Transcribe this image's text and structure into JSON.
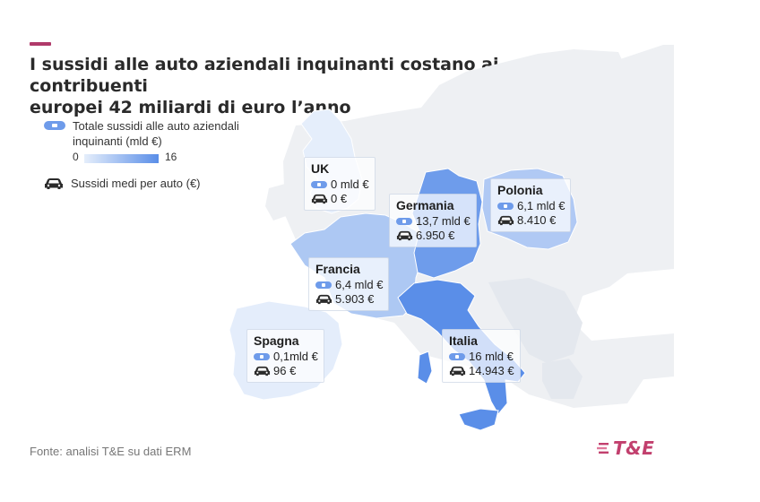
{
  "title": {
    "line1": "I sussidi alle auto aziendali inquinanti costano ai contribuenti",
    "line2": "europei 42 miliardi di euro l’anno"
  },
  "legend": {
    "subsidy_label": "Totale sussidi alle auto aziendali inquinanti (mld €)",
    "scale_min": "0",
    "scale_max": "16",
    "car_label": "Sussidi medi per auto (€)"
  },
  "colors": {
    "accent": "#b03a6a",
    "scale_low": "#e5eefb",
    "scale_high": "#5a8ee8",
    "no_data": "#eef0f3",
    "brand": "#c2406e"
  },
  "countries": [
    {
      "id": "uk",
      "name": "UK",
      "subsidy": "0 mld €",
      "per_car": "0 €",
      "subsidy_value": 0
    },
    {
      "id": "germania",
      "name": "Germania",
      "subsidy": "13,7 mld €",
      "per_car": "6.950 €",
      "subsidy_value": 13.7
    },
    {
      "id": "polonia",
      "name": "Polonia",
      "subsidy": "6,1 mld €",
      "per_car": "8.410 €",
      "subsidy_value": 6.1
    },
    {
      "id": "francia",
      "name": "Francia",
      "subsidy": "6,4 mld €",
      "per_car": "5.903 €",
      "subsidy_value": 6.4
    },
    {
      "id": "spagna",
      "name": "Spagna",
      "subsidy": "0,1mld €",
      "per_car": "96 €",
      "subsidy_value": 0.1
    },
    {
      "id": "italia",
      "name": "Italia",
      "subsidy": "16 mld €",
      "per_car": "14.943 €",
      "subsidy_value": 16
    }
  ],
  "source": "Fonte: analisi T&E su dati ERM",
  "logo": "T&E"
}
